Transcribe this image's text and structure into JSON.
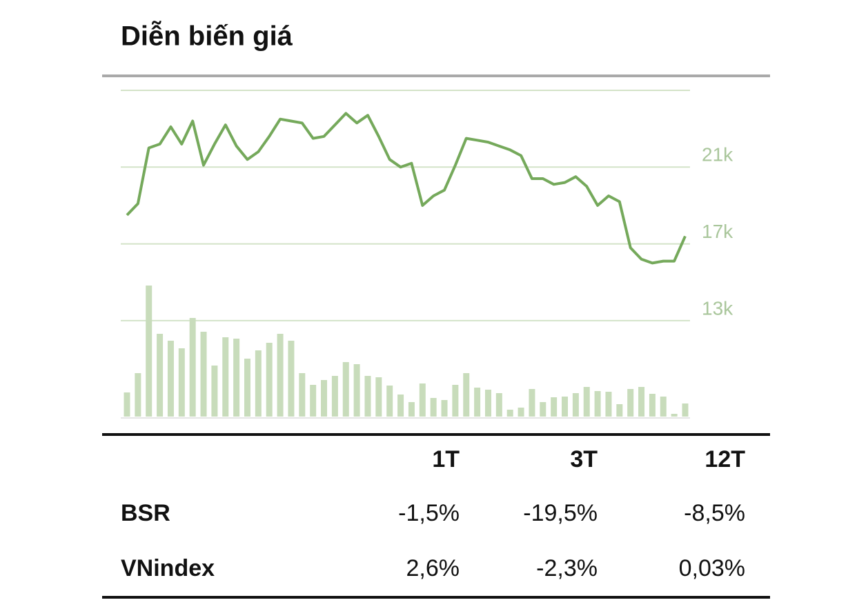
{
  "chart_data": {
    "type": "line",
    "title": "Diễn biến giá",
    "ylim": [
      8000,
      25000
    ],
    "yticks": [
      {
        "value": 21000,
        "label": "21k"
      },
      {
        "value": 17000,
        "label": "17k"
      },
      {
        "value": 13000,
        "label": "13k"
      }
    ],
    "y2lim": [
      0,
      473
    ],
    "grid": true,
    "series": [
      {
        "type": "line",
        "color": "#75a95b",
        "values": [
          18500,
          19100,
          22000,
          22200,
          23100,
          22200,
          23400,
          21100,
          22200,
          23200,
          22100,
          21400,
          21800,
          22600,
          23500,
          23400,
          23300,
          22500,
          22600,
          23200,
          23800,
          23300,
          23700,
          22600,
          21400,
          21000,
          21200,
          19000,
          19500,
          19800,
          21100,
          22500,
          22400,
          22300,
          22100,
          21900,
          21600,
          20400,
          20400,
          20100,
          20200,
          20500,
          20000,
          19000,
          19500,
          19200,
          16800,
          16200,
          16000,
          16100,
          16100,
          17400
        ]
      },
      {
        "type": "bar",
        "axis": "y2",
        "color": "#c8dcbb",
        "values": [
          35,
          63,
          190,
          120,
          110,
          99,
          143,
          123,
          74,
          115,
          113,
          84,
          96,
          107,
          120,
          110,
          63,
          46,
          53,
          59,
          79,
          76,
          59,
          57,
          45,
          32,
          21,
          48,
          27,
          24,
          46,
          63,
          42,
          39,
          34,
          10,
          13,
          40,
          21,
          28,
          29,
          34,
          43,
          37,
          36,
          18,
          40,
          43,
          33,
          29,
          4,
          19
        ]
      }
    ]
  },
  "table": {
    "header": [
      "1T",
      "3T",
      "12T"
    ],
    "rows": [
      [
        "BSR",
        "-1,5%",
        "-19,5%",
        "-8,5%"
      ],
      [
        "VNindex",
        "2,6%",
        "-2,3%",
        "0,03%"
      ]
    ]
  }
}
